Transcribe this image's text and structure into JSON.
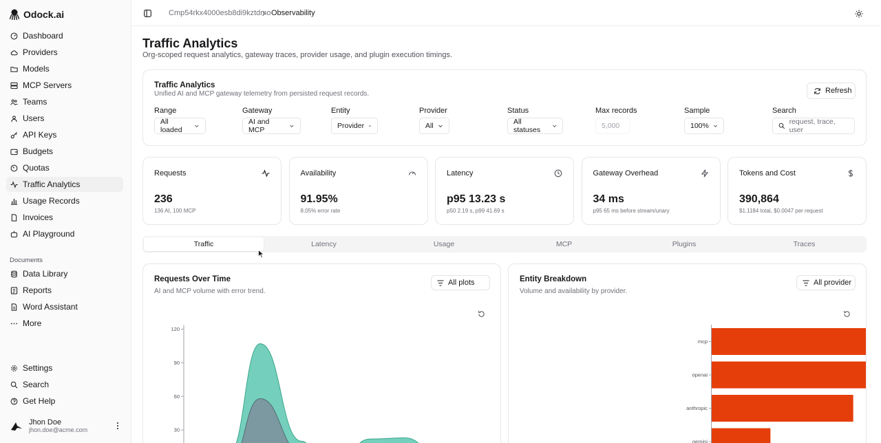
{
  "brand": {
    "name": "Odock.ai"
  },
  "nav": {
    "items": [
      "Dashboard",
      "Providers",
      "Models",
      "MCP Servers",
      "Teams",
      "Users",
      "API Keys",
      "Budgets",
      "Quotas",
      "Traffic Analytics",
      "Usage Records",
      "Invoices",
      "AI Playground"
    ],
    "documents_label": "Documents",
    "documents": [
      "Data Library",
      "Reports",
      "Word Assistant",
      "More"
    ],
    "bottom": [
      "Settings",
      "Search",
      "Get Help"
    ]
  },
  "user": {
    "name": "Jhon Doe",
    "email": "jhon.doe@acme.com"
  },
  "breadcrumb": {
    "org": "Cmp54rkx4000esb8di9kztdmo",
    "page": "Observability"
  },
  "page": {
    "title": "Traffic Analytics",
    "subtitle": "Org-scoped request analytics, gateway traces, provider usage, and plugin execution timings."
  },
  "filters_card": {
    "title": "Traffic Analytics",
    "subtitle": "Unified AI and MCP gateway telemetry from persisted request records.",
    "refresh_label": "Refresh",
    "filters": [
      {
        "label": "Range",
        "value": "All loaded"
      },
      {
        "label": "Gateway",
        "value": "AI and MCP"
      },
      {
        "label": "Entity",
        "value": "Provider"
      },
      {
        "label": "Provider",
        "value": "All"
      },
      {
        "label": "Status",
        "value": "All statuses"
      },
      {
        "label": "Max records",
        "value": "5,000"
      },
      {
        "label": "Sample",
        "value": "100%"
      },
      {
        "label": "Search",
        "value": ""
      }
    ],
    "search_placeholder": "request, trace, user"
  },
  "stats": [
    {
      "label": "Requests",
      "icon": "activity-icon",
      "value": "236",
      "sub": "136 AI, 100 MCP"
    },
    {
      "label": "Availability",
      "icon": "gauge-icon",
      "value": "91.95%",
      "sub": "8.05% error rate"
    },
    {
      "label": "Latency",
      "icon": "clock-icon",
      "value": "p95 13.23 s",
      "sub": "p50 2.19 s, p99 41.69 s"
    },
    {
      "label": "Gateway Overhead",
      "icon": "zap-icon",
      "value": "34 ms",
      "sub": "p95 65 ms before stream/unary"
    },
    {
      "label": "Tokens and Cost",
      "icon": "dollar-icon",
      "value": "390,864",
      "sub": "$1.1184 total, $0.0047 per request"
    }
  ],
  "tabs": [
    "Traffic",
    "Latency",
    "Usage",
    "MCP",
    "Plugins",
    "Traces"
  ],
  "requests_panel": {
    "title": "Requests Over Time",
    "subtitle": "AI and MCP volume with error trend.",
    "filter_label": "All plots"
  },
  "entity_panel": {
    "title": "Entity Breakdown",
    "subtitle": "Volume and availability by provider.",
    "filter_label": "All provider"
  },
  "colors": {
    "teal": "#6dcdb8",
    "slate": "#7c96a0",
    "orange": "#e63e0a"
  },
  "chart_data": [
    {
      "type": "area",
      "title": "Requests Over Time",
      "y_ticks": [
        30,
        60,
        90,
        120
      ],
      "ylim": [
        0,
        125
      ],
      "series": [
        {
          "values": [
            0,
            2,
            10,
            107,
            20,
            2,
            0,
            22,
            23,
            0
          ]
        },
        {
          "values": [
            0,
            0,
            0,
            58,
            10,
            0,
            0,
            0,
            0,
            0
          ]
        }
      ]
    },
    {
      "type": "bar",
      "title": "Entity Breakdown",
      "categories": [
        "mcp",
        "openai",
        "anthropic",
        "gemini"
      ],
      "values": [
        100,
        61,
        53,
        22
      ],
      "xlim": [
        0,
        100
      ]
    }
  ]
}
